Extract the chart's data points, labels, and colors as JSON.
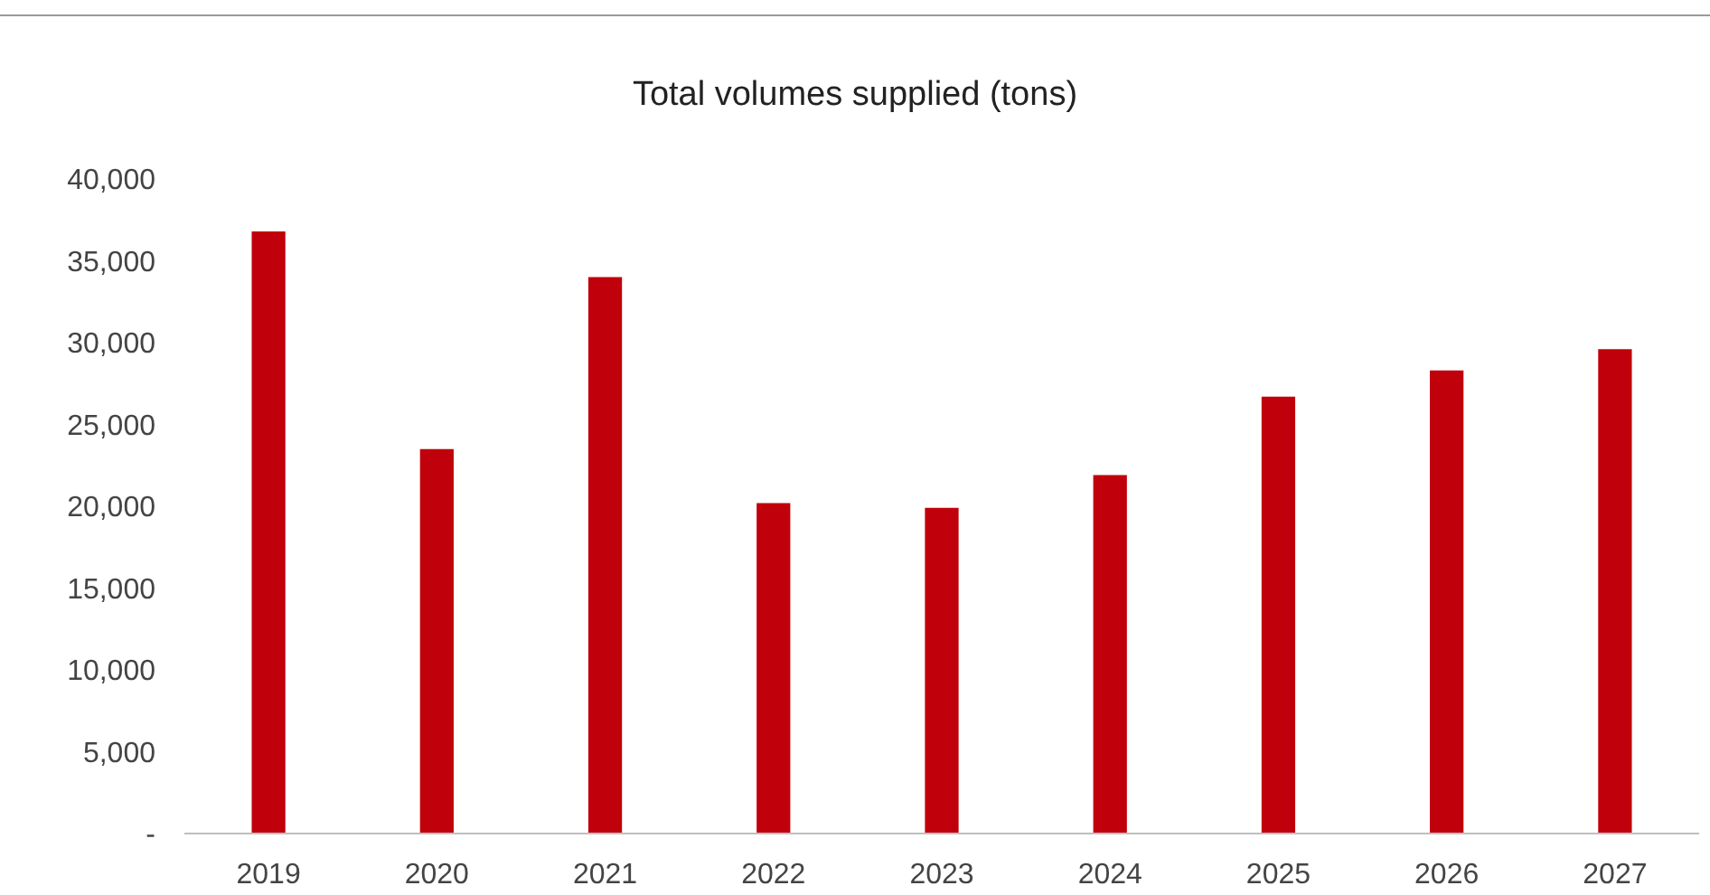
{
  "chart_data": {
    "type": "bar",
    "title": "Total volumes supplied (tons)",
    "categories": [
      "2019",
      "2020",
      "2021",
      "2022",
      "2023",
      "2024",
      "2025",
      "2026",
      "2027"
    ],
    "values": [
      36800,
      23500,
      34000,
      20200,
      19900,
      21900,
      26700,
      28300,
      29600
    ],
    "color": "#c0000b",
    "ylim": [
      0,
      40000
    ],
    "yticks": [
      {
        "value": 0,
        "label": "-"
      },
      {
        "value": 5000,
        "label": "5,000"
      },
      {
        "value": 10000,
        "label": "10,000"
      },
      {
        "value": 15000,
        "label": "15,000"
      },
      {
        "value": 20000,
        "label": "20,000"
      },
      {
        "value": 25000,
        "label": "25,000"
      },
      {
        "value": 30000,
        "label": "30,000"
      },
      {
        "value": 35000,
        "label": "35,000"
      },
      {
        "value": 40000,
        "label": "40,000"
      }
    ],
    "grid": false,
    "legend": false
  }
}
